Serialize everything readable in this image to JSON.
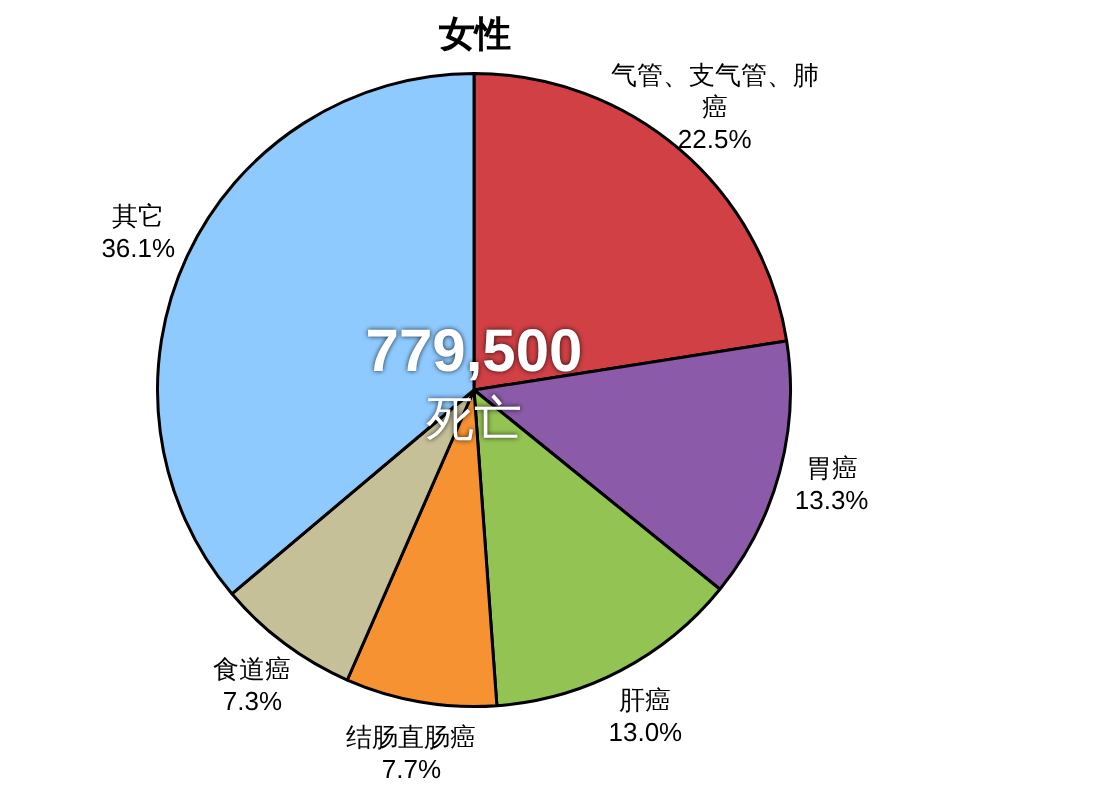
{
  "chart_data": {
    "type": "pie",
    "title": "女性",
    "categories": [
      "气管、支气管、肺癌",
      "胃癌",
      "肝癌",
      "结肠直肠癌",
      "食道癌",
      "其它"
    ],
    "values": [
      22.5,
      13.3,
      13.0,
      7.7,
      7.3,
      36.1
    ],
    "value_labels": [
      "22.5%",
      "13.3%",
      "13.0%",
      "7.7%",
      "7.3%",
      "36.1%"
    ],
    "colors": [
      "#d04045",
      "#8b5aa8",
      "#92c353",
      "#f69231",
      "#c6c098",
      "#8fcaff"
    ],
    "annotations": [
      "779,500",
      "死亡"
    ],
    "legend": false
  }
}
